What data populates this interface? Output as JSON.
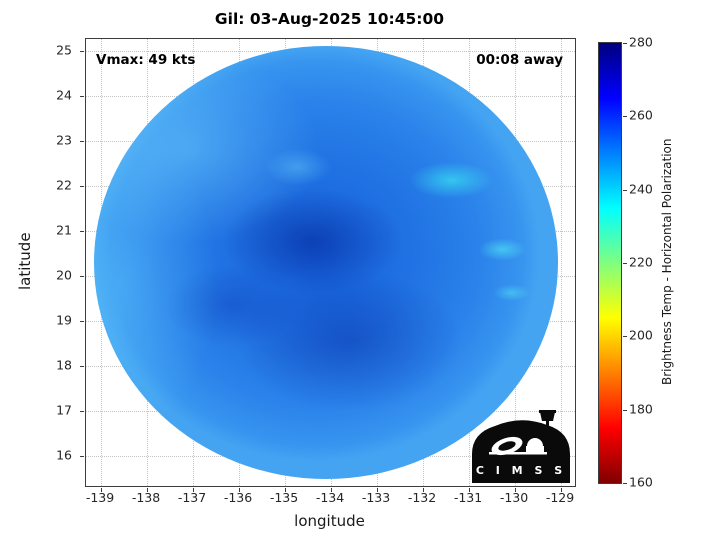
{
  "figure": {
    "title": "Gil: 03-Aug-2025 10:45:00",
    "vmax_label": "Vmax: 49 kts",
    "eta_label": "00:08 away",
    "xlabel": "longitude",
    "ylabel": "latitude"
  },
  "axes": {
    "x_ticks": [
      "-139",
      "-138",
      "-137",
      "-136",
      "-135",
      "-134",
      "-133",
      "-132",
      "-131",
      "-130",
      "-129"
    ],
    "y_ticks": [
      "25",
      "24",
      "23",
      "22",
      "21",
      "20",
      "19",
      "18",
      "17",
      "16"
    ]
  },
  "colorbar": {
    "label": "Brightness Temp - Horizontal Polarization",
    "ticks": [
      "280",
      "260",
      "240",
      "220",
      "200",
      "180",
      "160"
    ],
    "min": 160,
    "max": 280,
    "colormap": "reversed-jet",
    "stop_colors": [
      "#000080",
      "#0000ff",
      "#00ffff",
      "#ffff00",
      "#ff0000",
      "#800000"
    ]
  },
  "logo": {
    "text": "C I M S S"
  },
  "chart_data": {
    "type": "heatmap",
    "title": "Gil: 03-Aug-2025 10:45:00",
    "xlabel": "longitude",
    "ylabel": "latitude",
    "xlim": [
      -139.4,
      -128.7
    ],
    "ylim": [
      15.3,
      25.3
    ],
    "grid": true,
    "colormap": "reversed-jet",
    "value_label": "Brightness Temp - Horizontal Polarization",
    "value_range": [
      160,
      280
    ],
    "colorbar_ticks": [
      280,
      260,
      240,
      220,
      200,
      180,
      160
    ],
    "swath": {
      "shape": "circular-disk",
      "center_lon": -134.4,
      "center_lat": 20.3,
      "radius_deg": 5.0
    },
    "dominant_values_K": [
      245,
      272
    ],
    "annotations": [
      "Vmax: 49 kts",
      "00:08 away"
    ],
    "features": [
      "deep blue (~265-275 K) spiral banding across the center and southern half of the disk",
      "lighter blue (~245-255 K) arc along the west and northwest rim of the swath",
      "scattered cyan flecks (~235-242 K) near lon -131.8 lat 22.4 and along the eastern edge near lon -130.6 lat 19.5-21",
      "darker navy patch near disk center around lon -134.5 lat 20.8",
      "CIMSS logo overlay in the bottom-right corner of the axes"
    ]
  }
}
